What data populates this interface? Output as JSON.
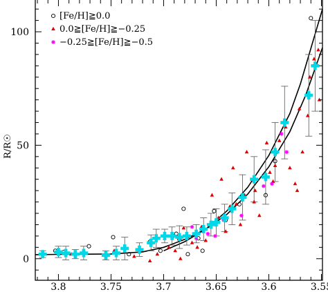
{
  "chart_data": {
    "type": "scatter",
    "x_reversed": true,
    "xlim": [
      3.822,
      3.549
    ],
    "ylim": [
      -9.5,
      114
    ],
    "xticks_major": [
      3.8,
      3.75,
      3.7,
      3.65,
      3.6,
      3.55
    ],
    "xticklabels": [
      "3.8",
      "3.75",
      "3.7",
      "3.65",
      "3.6",
      "3.55"
    ],
    "yticks_major": [
      0,
      50,
      100
    ],
    "yticklabels": [
      "0",
      "50",
      "100"
    ],
    "ylabel": "R/R☉",
    "xlabel": "",
    "legend_position": "top-left",
    "legend": [
      {
        "label": "[Fe/H]≧0.0",
        "marker": "open-circle",
        "color": "#000000"
      },
      {
        "label": "0.0≧[Fe/H]≧−0.25",
        "marker": "filled-triangle",
        "color": "#e00000"
      },
      {
        "label": "−0.25≧[Fe/H]≧−0.5",
        "marker": "asterisk",
        "color": "#ff00ff"
      }
    ],
    "series": [
      {
        "marker": "open-circle",
        "color": "#000000",
        "points": [
          [
            3.803,
            3.5
          ],
          [
            3.795,
            3
          ],
          [
            3.771,
            5.5
          ],
          [
            3.748,
            9.5
          ],
          [
            3.713,
            7.5
          ],
          [
            3.691,
            10
          ],
          [
            3.688,
            11
          ],
          [
            3.685,
            8.5
          ],
          [
            3.681,
            22
          ],
          [
            3.667,
            9
          ],
          [
            3.652,
            21
          ],
          [
            3.641,
            17
          ],
          [
            3.628,
            24
          ],
          [
            3.603,
            28
          ],
          [
            3.594,
            43
          ],
          [
            3.56,
            106
          ],
          [
            3.703,
            3.5
          ],
          [
            3.677,
            2
          ],
          [
            3.663,
            3.5
          ],
          [
            3.733,
            2
          ]
        ]
      },
      {
        "marker": "filled-triangle",
        "color": "#e00000",
        "points": [
          [
            3.788,
            2
          ],
          [
            3.747,
            3.5
          ],
          [
            3.728,
            1
          ],
          [
            3.713,
            -1
          ],
          [
            3.706,
            2
          ],
          [
            3.699,
            9
          ],
          [
            3.695,
            5
          ],
          [
            3.689,
            3.5
          ],
          [
            3.684,
            0
          ],
          [
            3.681,
            13.5
          ],
          [
            3.673,
            7
          ],
          [
            3.668,
            5
          ],
          [
            3.664,
            14
          ],
          [
            3.66,
            8
          ],
          [
            3.654,
            28
          ],
          [
            3.648,
            18
          ],
          [
            3.645,
            35
          ],
          [
            3.641,
            12
          ],
          [
            3.634,
            40
          ],
          [
            3.631,
            24
          ],
          [
            3.627,
            15
          ],
          [
            3.623,
            28
          ],
          [
            3.621,
            47
          ],
          [
            3.614,
            25
          ],
          [
            3.609,
            19
          ],
          [
            3.602,
            51
          ],
          [
            3.599,
            38
          ],
          [
            3.596,
            34
          ],
          [
            3.594,
            41
          ],
          [
            3.59,
            52
          ],
          [
            3.584,
            58
          ],
          [
            3.58,
            40
          ],
          [
            3.575,
            33
          ],
          [
            3.571,
            66
          ],
          [
            3.568,
            47
          ],
          [
            3.563,
            63
          ],
          [
            3.561,
            80
          ],
          [
            3.557,
            88
          ],
          [
            3.553,
            92
          ],
          [
            3.552,
            70
          ],
          [
            3.573,
            30
          ],
          [
            3.613,
            30
          ],
          [
            3.637,
            23
          ]
        ]
      },
      {
        "marker": "asterisk",
        "color": "#ff00ff",
        "points": [
          [
            3.673,
            14
          ],
          [
            3.669,
            9
          ],
          [
            3.658,
            11
          ],
          [
            3.651,
            10
          ],
          [
            3.643,
            17
          ],
          [
            3.626,
            19
          ],
          [
            3.605,
            32
          ],
          [
            3.597,
            33
          ],
          [
            3.588,
            55
          ],
          [
            3.583,
            47
          ]
        ]
      },
      {
        "marker": "cyan-cross",
        "color": "#00d8e8",
        "points": [
          {
            "x": 3.815,
            "y": 2,
            "err": 1.5
          },
          {
            "x": 3.8,
            "y": 3,
            "err": 2.5
          },
          {
            "x": 3.793,
            "y": 2.5,
            "err": 3
          },
          {
            "x": 3.784,
            "y": 2,
            "err": 2
          },
          {
            "x": 3.776,
            "y": 2.5,
            "err": 3
          },
          {
            "x": 3.755,
            "y": 1.5,
            "err": 2
          },
          {
            "x": 3.745,
            "y": 2.5,
            "err": 3
          },
          {
            "x": 3.737,
            "y": 4.5,
            "err": 5
          },
          {
            "x": 3.723,
            "y": 4,
            "err": 3
          },
          {
            "x": 3.712,
            "y": 7,
            "err": 3.5
          },
          {
            "x": 3.707,
            "y": 9,
            "err": 4
          },
          {
            "x": 3.699,
            "y": 10,
            "err": 3
          },
          {
            "x": 3.692,
            "y": 10,
            "err": 4
          },
          {
            "x": 3.685,
            "y": 9.5,
            "err": 5
          },
          {
            "x": 3.678,
            "y": 10,
            "err": 4
          },
          {
            "x": 3.669,
            "y": 11,
            "err": 4
          },
          {
            "x": 3.662,
            "y": 13,
            "err": 5
          },
          {
            "x": 3.655,
            "y": 15,
            "err": 5
          },
          {
            "x": 3.65,
            "y": 16,
            "err": 6
          },
          {
            "x": 3.642,
            "y": 18,
            "err": 6
          },
          {
            "x": 3.635,
            "y": 22,
            "err": 7
          },
          {
            "x": 3.625,
            "y": 27,
            "err": 10
          },
          {
            "x": 3.614,
            "y": 35,
            "err": 10
          },
          {
            "x": 3.603,
            "y": 36,
            "err": 12
          },
          {
            "x": 3.594,
            "y": 47,
            "err": 13
          },
          {
            "x": 3.585,
            "y": 60,
            "err": 16
          },
          {
            "x": 3.562,
            "y": 72,
            "err": 18
          },
          {
            "x": 3.556,
            "y": 85,
            "err": 20
          }
        ]
      }
    ],
    "fit_curves": [
      {
        "color": "#000000",
        "points": [
          [
            3.822,
            1.8
          ],
          [
            3.8,
            1.9
          ],
          [
            3.75,
            2.1
          ],
          [
            3.72,
            3
          ],
          [
            3.7,
            5
          ],
          [
            3.68,
            8.5
          ],
          [
            3.66,
            13
          ],
          [
            3.64,
            19.5
          ],
          [
            3.62,
            28.5
          ],
          [
            3.6,
            40.5
          ],
          [
            3.58,
            56
          ],
          [
            3.565,
            72
          ],
          [
            3.549,
            93
          ]
        ]
      },
      {
        "color": "#000000",
        "points": [
          [
            3.7,
            3.5
          ],
          [
            3.68,
            7.5
          ],
          [
            3.66,
            13
          ],
          [
            3.64,
            21
          ],
          [
            3.62,
            31.5
          ],
          [
            3.6,
            45.5
          ],
          [
            3.58,
            64
          ],
          [
            3.57,
            77
          ],
          [
            3.549,
            110
          ]
        ]
      }
    ]
  }
}
